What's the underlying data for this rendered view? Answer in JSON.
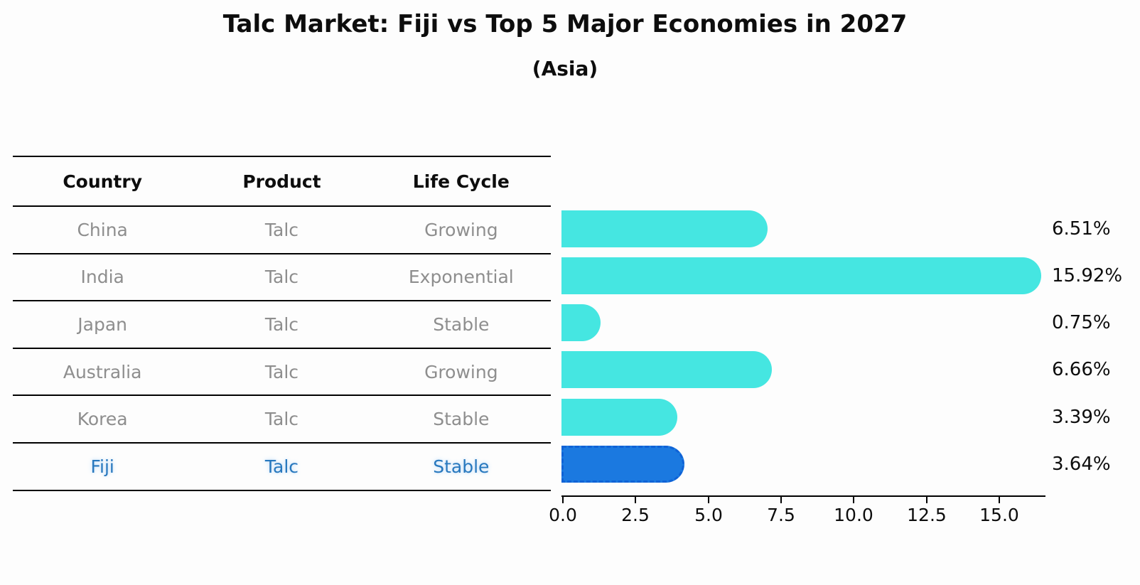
{
  "header": {
    "title": "Talc Market: Fiji vs Top 5 Major Economies in 2027",
    "subtitle": "(Asia)"
  },
  "table": {
    "headers": [
      "Country",
      "Product",
      "Life Cycle"
    ],
    "rows": [
      {
        "country": "China",
        "product": "Talc",
        "life_cycle": "Growing",
        "highlight": false
      },
      {
        "country": "India",
        "product": "Talc",
        "life_cycle": "Exponential",
        "highlight": false
      },
      {
        "country": "Japan",
        "product": "Talc",
        "life_cycle": "Stable",
        "highlight": false
      },
      {
        "country": "Australia",
        "product": "Talc",
        "life_cycle": "Growing",
        "highlight": false
      },
      {
        "country": "Korea",
        "product": "Talc",
        "life_cycle": "Stable",
        "highlight": false
      },
      {
        "country": "Fiji",
        "product": "Talc",
        "life_cycle": "Stable",
        "highlight": true
      }
    ]
  },
  "chart_data": {
    "type": "bar",
    "orientation": "horizontal",
    "title": "Talc Market: Fiji vs Top 5 Major Economies in 2027",
    "subtitle": "(Asia)",
    "categories": [
      "China",
      "India",
      "Japan",
      "Australia",
      "Korea",
      "Fiji"
    ],
    "values": [
      6.51,
      15.92,
      0.75,
      6.66,
      3.39,
      3.64
    ],
    "value_labels": [
      "6.51%",
      "15.92%",
      "0.75%",
      "6.66%",
      "3.39%",
      "3.64%"
    ],
    "xlabel": "",
    "ylabel": "",
    "xlim": [
      0,
      16.7
    ],
    "x_ticks": [
      "0.0",
      "2.5",
      "5.0",
      "7.5",
      "10.0",
      "12.5",
      "15.0"
    ],
    "grid": false,
    "legend": "none",
    "highlight_index": 5,
    "colors": {
      "default_bar": "#45e6e1",
      "highlight_bar": "#1b79e0",
      "highlight_bar_edge": "#0f62d6",
      "highlight_text": "#2878be",
      "text": "#0d0d0d",
      "muted_text": "#8e8e8e"
    }
  }
}
